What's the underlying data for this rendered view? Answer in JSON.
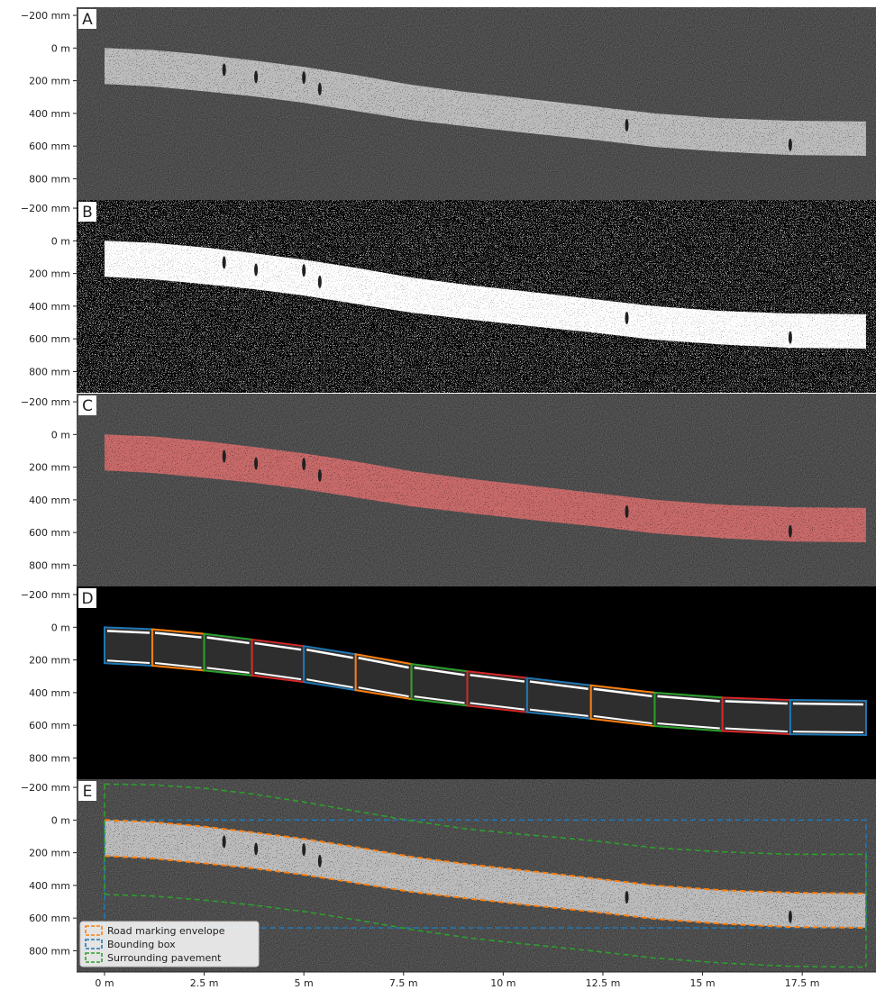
{
  "chart_data": {
    "type": "image_panels",
    "x_unit": "m",
    "y_unit": "mm",
    "x_range_m": [
      -0.7,
      19.35
    ],
    "y_range_mm": [
      -250,
      930
    ],
    "y_ticks": [
      {
        "value": -200,
        "label": "−200 mm"
      },
      {
        "value": 0,
        "label": "0 m"
      },
      {
        "value": 200,
        "label": "200 mm"
      },
      {
        "value": 400,
        "label": "400 mm"
      },
      {
        "value": 600,
        "label": "600 mm"
      },
      {
        "value": 800,
        "label": "800 mm"
      }
    ],
    "x_ticks": [
      {
        "value": 0,
        "label": "0 m"
      },
      {
        "value": 2.5,
        "label": "2.5 m"
      },
      {
        "value": 5,
        "label": "5 m"
      },
      {
        "value": 7.5,
        "label": "7.5 m"
      },
      {
        "value": 10,
        "label": "10 m"
      },
      {
        "value": 12.5,
        "label": "12.5 m"
      },
      {
        "value": 15,
        "label": "15 m"
      },
      {
        "value": 17.5,
        "label": "17.5 m"
      }
    ],
    "panels": [
      {
        "letter": "A",
        "style": "raw_grayscale",
        "background": "#3b3b3b"
      },
      {
        "letter": "B",
        "style": "binarized",
        "background": "#000000"
      },
      {
        "letter": "C",
        "style": "segmented_overlay",
        "background": "#3b3b3b"
      },
      {
        "letter": "D",
        "style": "segment_boxes",
        "background": "#000000"
      },
      {
        "letter": "E",
        "style": "envelopes",
        "background": "#3b3b3b"
      }
    ],
    "marking_top_edge": {
      "x": [
        0,
        1.2,
        2.5,
        3.7,
        5.0,
        6.3,
        7.7,
        9.1,
        10.6,
        12.2,
        13.8,
        15.5,
        17.2,
        19.1
      ],
      "y": [
        0,
        12,
        40,
        75,
        115,
        165,
        225,
        270,
        310,
        355,
        400,
        430,
        445,
        450
      ]
    },
    "marking_bottom_edge": {
      "x": [
        0,
        1.2,
        2.5,
        3.7,
        5.0,
        6.3,
        7.7,
        9.1,
        10.6,
        12.2,
        13.8,
        15.5,
        17.2,
        19.1
      ],
      "y": [
        220,
        235,
        265,
        295,
        335,
        385,
        440,
        480,
        520,
        560,
        605,
        635,
        655,
        660
      ]
    },
    "segment_boundaries_m": [
      0,
      1.2,
      2.5,
      3.7,
      5.0,
      6.3,
      7.7,
      9.1,
      10.6,
      12.2,
      13.8,
      15.5,
      17.2,
      19.1
    ],
    "segment_colors": [
      "#1f77b4",
      "#ff7f0e",
      "#2ca02c",
      "#d62728"
    ],
    "bounding_box": {
      "x": [
        0,
        19.1
      ],
      "y": [
        0,
        660
      ]
    },
    "surrounding_pavement": {
      "top": {
        "x": [
          0,
          1.2,
          2.5,
          3.7,
          5.0,
          6.3,
          7.7,
          9.1,
          10.6,
          12.2,
          13.8,
          15.5,
          17.2,
          19.1
        ],
        "y": [
          -220,
          -215,
          -195,
          -160,
          -110,
          -55,
          5,
          55,
          90,
          125,
          170,
          195,
          210,
          210
        ]
      },
      "bottom": {
        "x": [
          0,
          1.2,
          2.5,
          3.7,
          5.0,
          6.3,
          7.7,
          9.1,
          10.6,
          12.2,
          13.8,
          15.5,
          17.2,
          19.1
        ],
        "y": [
          455,
          465,
          490,
          520,
          560,
          610,
          670,
          720,
          760,
          800,
          845,
          875,
          895,
          900
        ]
      }
    },
    "legend": {
      "placement": "lower-left",
      "entries": [
        {
          "label": "Road marking envelope",
          "color": "#ff7f0e"
        },
        {
          "label": "Bounding box",
          "color": "#1f77b4"
        },
        {
          "label": "Surrounding pavement",
          "color": "#2ca02c"
        }
      ]
    },
    "colors": {
      "marking_fill": "#bdbdbd",
      "marking_fill_binary": "#ffffff",
      "segmentation_overlay": "#c86a6a",
      "dark_spot": "#202020"
    }
  }
}
